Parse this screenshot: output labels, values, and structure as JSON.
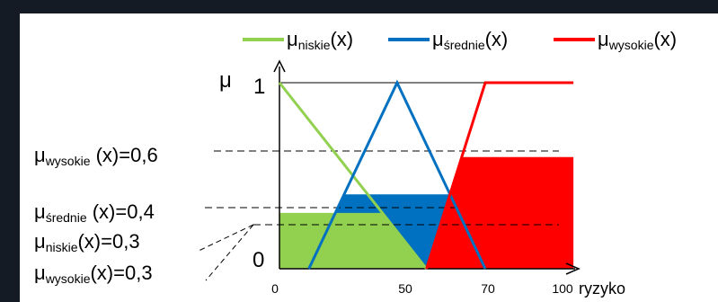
{
  "legend": {
    "niskie": {
      "mu": "μ",
      "sub": "niskie",
      "arg": "(x)",
      "color": "#92d050"
    },
    "srednie": {
      "mu": "μ",
      "sub": "średnie",
      "arg": "(x)",
      "color": "#0070c0"
    },
    "wysokie": {
      "mu": "μ",
      "sub": "wysokie",
      "arg": "(x)",
      "color": "#ff0000"
    }
  },
  "axes": {
    "y_symbol": "μ",
    "y_one": "1",
    "y_zero": "0",
    "x_ticks": [
      "0",
      "50",
      "70",
      "100"
    ],
    "x_label": "ryzyko"
  },
  "annotations": {
    "wysokie_06": {
      "mu": "μ",
      "sub": "wysokie",
      "rest": " (x)=0,6"
    },
    "srednie_04": {
      "mu": "μ",
      "sub": "średnie",
      "rest": " (x)=0,4"
    },
    "niskie_03": {
      "mu": "μ",
      "sub": "niskie",
      "rest": "(x)=0,3"
    },
    "wysokie_03": {
      "mu": "μ",
      "sub": "wysokie",
      "rest": "(x)=0,3"
    }
  },
  "memberships": {
    "niskie": [
      [
        0,
        1
      ],
      [
        50,
        0
      ]
    ],
    "srednie": [
      [
        10,
        0
      ],
      [
        40,
        1
      ],
      [
        70,
        0
      ]
    ],
    "wysokie": [
      [
        50,
        0
      ],
      [
        70,
        1
      ],
      [
        100,
        1
      ]
    ]
  },
  "clip_levels": {
    "niskie": 0.3,
    "srednie": 0.4,
    "wysokie": 0.6
  }
}
